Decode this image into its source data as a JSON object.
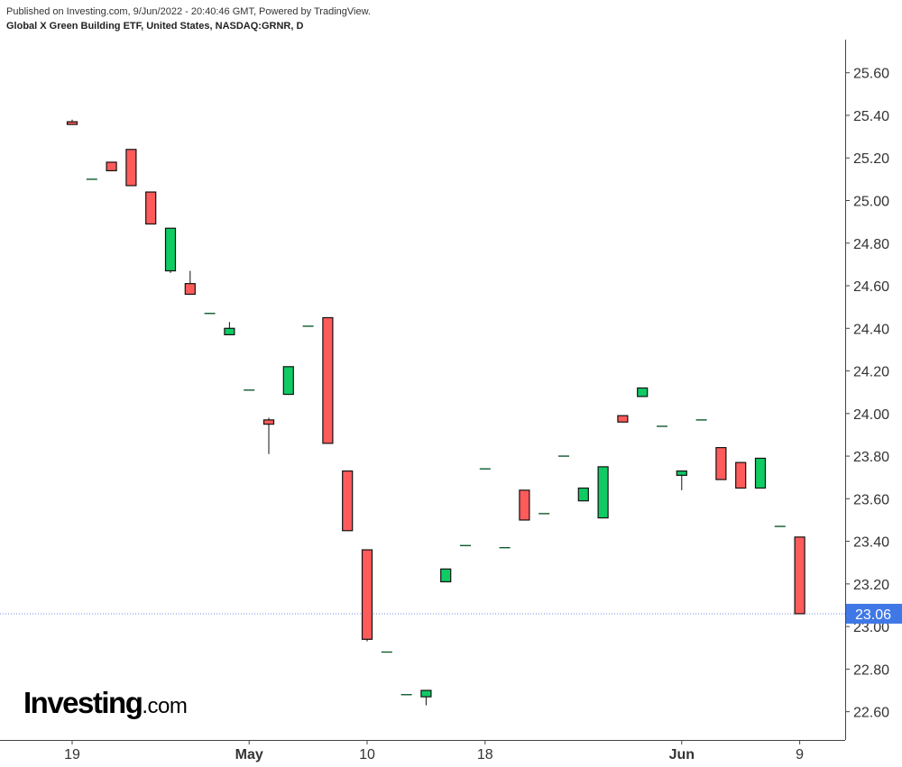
{
  "header": {
    "published": "Published on Investing.com, 9/Jun/2022 - 20:40:46 GMT, Powered by TradingView.",
    "symbol": "Global X Green Building ETF, United States, NASDAQ:GRNR, D"
  },
  "logo": {
    "main": "Investing",
    "suffix": ".com"
  },
  "colors": {
    "up": "#0ecb63",
    "down": "#ff5b5b",
    "border": "#111111",
    "price_line": "#6e8fe8",
    "price_label_bg": "#3f78e6",
    "axis": "#444444"
  },
  "chart_data": {
    "type": "candlestick",
    "title": "Global X Green Building ETF, United States, NASDAQ:GRNR, D",
    "x_tick_labels": [
      "19",
      "May",
      "10",
      "18",
      "Jun",
      "9"
    ],
    "x_tick_index": [
      0,
      9,
      15,
      21,
      31,
      37
    ],
    "x_tick_bold": [
      false,
      true,
      false,
      false,
      true,
      false
    ],
    "y_tick_labels": [
      "25.60",
      "25.40",
      "25.20",
      "25.00",
      "24.80",
      "24.60",
      "24.40",
      "24.20",
      "24.00",
      "23.80",
      "23.60",
      "23.40",
      "23.20",
      "23.00",
      "22.80",
      "22.60"
    ],
    "ylim": [
      22.48,
      25.73
    ],
    "last_price": 23.06,
    "last_price_label": "23.06",
    "grid": false,
    "candles": [
      {
        "o": 25.37,
        "h": 25.38,
        "l": 25.36,
        "c": 25.36
      },
      {
        "o": 25.1,
        "h": 25.1,
        "l": 25.1,
        "c": 25.1
      },
      {
        "o": 25.18,
        "h": 25.18,
        "l": 25.14,
        "c": 25.14
      },
      {
        "o": 25.24,
        "h": 25.24,
        "l": 25.07,
        "c": 25.07
      },
      {
        "o": 25.04,
        "h": 25.04,
        "l": 24.89,
        "c": 24.89
      },
      {
        "o": 24.67,
        "h": 24.87,
        "l": 24.66,
        "c": 24.87
      },
      {
        "o": 24.61,
        "h": 24.67,
        "l": 24.56,
        "c": 24.56
      },
      {
        "o": 24.47,
        "h": 24.47,
        "l": 24.47,
        "c": 24.47
      },
      {
        "o": 24.37,
        "h": 24.43,
        "l": 24.37,
        "c": 24.4
      },
      {
        "o": 24.11,
        "h": 24.11,
        "l": 24.11,
        "c": 24.11
      },
      {
        "o": 23.97,
        "h": 23.98,
        "l": 23.81,
        "c": 23.95
      },
      {
        "o": 24.09,
        "h": 24.22,
        "l": 24.09,
        "c": 24.22
      },
      {
        "o": 24.41,
        "h": 24.41,
        "l": 24.41,
        "c": 24.41
      },
      {
        "o": 24.45,
        "h": 24.45,
        "l": 23.86,
        "c": 23.86
      },
      {
        "o": 23.73,
        "h": 23.73,
        "l": 23.45,
        "c": 23.45
      },
      {
        "o": 23.36,
        "h": 23.36,
        "l": 22.93,
        "c": 22.94
      },
      {
        "o": 22.88,
        "h": 22.88,
        "l": 22.88,
        "c": 22.88
      },
      {
        "o": 22.68,
        "h": 22.68,
        "l": 22.68,
        "c": 22.68
      },
      {
        "o": 22.67,
        "h": 22.7,
        "l": 22.63,
        "c": 22.7
      },
      {
        "o": 23.21,
        "h": 23.27,
        "l": 23.21,
        "c": 23.27
      },
      {
        "o": 23.38,
        "h": 23.38,
        "l": 23.38,
        "c": 23.38
      },
      {
        "o": 23.74,
        "h": 23.74,
        "l": 23.74,
        "c": 23.74
      },
      {
        "o": 23.37,
        "h": 23.37,
        "l": 23.37,
        "c": 23.37
      },
      {
        "o": 23.64,
        "h": 23.64,
        "l": 23.5,
        "c": 23.5
      },
      {
        "o": 23.53,
        "h": 23.53,
        "l": 23.53,
        "c": 23.53
      },
      {
        "o": 23.8,
        "h": 23.8,
        "l": 23.8,
        "c": 23.8
      },
      {
        "o": 23.59,
        "h": 23.65,
        "l": 23.59,
        "c": 23.65
      },
      {
        "o": 23.51,
        "h": 23.75,
        "l": 23.51,
        "c": 23.75
      },
      {
        "o": 23.99,
        "h": 23.99,
        "l": 23.96,
        "c": 23.96
      },
      {
        "o": 24.08,
        "h": 24.12,
        "l": 24.08,
        "c": 24.12
      },
      {
        "o": 23.94,
        "h": 23.94,
        "l": 23.94,
        "c": 23.94
      },
      {
        "o": 23.71,
        "h": 23.73,
        "l": 23.64,
        "c": 23.73
      },
      {
        "o": 23.97,
        "h": 23.97,
        "l": 23.97,
        "c": 23.97
      },
      {
        "o": 23.84,
        "h": 23.84,
        "l": 23.69,
        "c": 23.69
      },
      {
        "o": 23.77,
        "h": 23.77,
        "l": 23.65,
        "c": 23.65
      },
      {
        "o": 23.65,
        "h": 23.79,
        "l": 23.65,
        "c": 23.79
      },
      {
        "o": 23.47,
        "h": 23.47,
        "l": 23.47,
        "c": 23.47
      },
      {
        "o": 23.42,
        "h": 23.42,
        "l": 23.06,
        "c": 23.06
      }
    ]
  }
}
